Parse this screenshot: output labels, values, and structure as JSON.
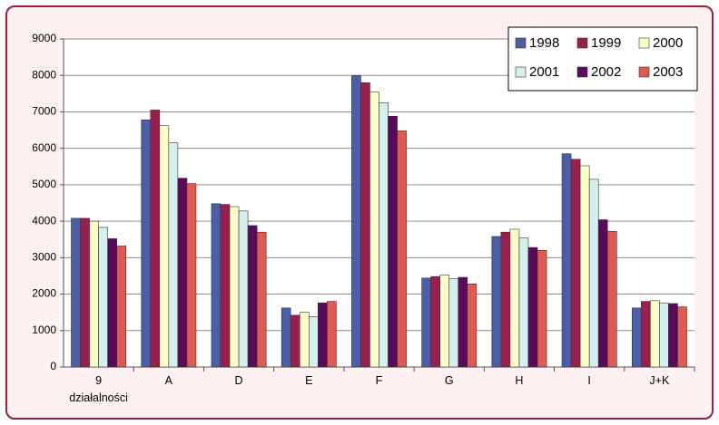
{
  "chart_data": {
    "type": "bar",
    "categories": [
      "9 działalności",
      "A",
      "D",
      "E",
      "F",
      "G",
      "H",
      "I",
      "J+K"
    ],
    "series": [
      {
        "name": "1998",
        "color": "#4a5fa8",
        "values": [
          4080,
          6780,
          4480,
          1620,
          8000,
          2440,
          3580,
          5850,
          1620
        ]
      },
      {
        "name": "1999",
        "color": "#9b1f4e",
        "values": [
          4080,
          7050,
          4460,
          1420,
          7800,
          2480,
          3700,
          5700,
          1800
        ]
      },
      {
        "name": "2000",
        "color": "#ffffc8",
        "values": [
          4000,
          6620,
          4400,
          1500,
          7540,
          2520,
          3780,
          5520,
          1820
        ]
      },
      {
        "name": "2001",
        "color": "#d4efef",
        "values": [
          3830,
          6150,
          4280,
          1380,
          7250,
          2420,
          3540,
          5150,
          1760
        ]
      },
      {
        "name": "2002",
        "color": "#5a0a5a",
        "values": [
          3520,
          5180,
          3880,
          1760,
          6880,
          2460,
          3280,
          4040,
          1740
        ]
      },
      {
        "name": "2003",
        "color": "#e05a50",
        "values": [
          3320,
          5030,
          3700,
          1800,
          6480,
          2280,
          3200,
          3720,
          1650
        ]
      }
    ],
    "ylim": [
      0,
      9000
    ],
    "yticks": [
      0,
      1000,
      2000,
      3000,
      4000,
      5000,
      6000,
      7000,
      8000,
      9000
    ],
    "grid": true,
    "legend": "top-right"
  }
}
